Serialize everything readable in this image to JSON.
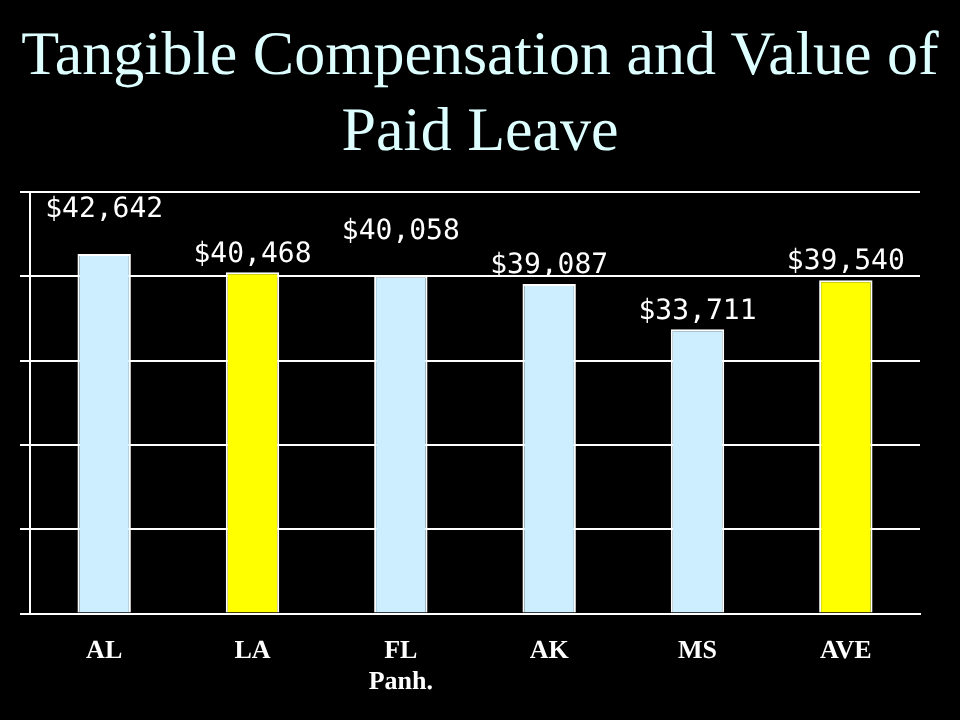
{
  "chart_data": {
    "type": "bar",
    "title": "Tangible Compensation and Value of Paid Leave",
    "categories": [
      "AL",
      "LA",
      "FL\nPanh.",
      "AK",
      "MS",
      "AVE"
    ],
    "values": [
      42642,
      40468,
      40058,
      39087,
      33711,
      39540
    ],
    "colors": [
      "#cceeff",
      "#ffff00",
      "#cceeff",
      "#cceeff",
      "#cceeff",
      "#ffff00"
    ],
    "value_labels": [
      "$42,642",
      "$40,468",
      "$40,058",
      "$39,087",
      "$33,711",
      "$39,540"
    ],
    "ylim": [
      0,
      50000
    ],
    "yticks": [
      {
        "value": 0,
        "label": null
      },
      {
        "value": 10000,
        "label": null
      },
      {
        "value": 20000,
        "label": null
      },
      {
        "value": 30000,
        "label": null
      },
      {
        "value": 40000,
        "label": null
      },
      {
        "value": 50000,
        "label": null
      }
    ],
    "tick_labels": "x",
    "grid": "y",
    "legend": false
  }
}
